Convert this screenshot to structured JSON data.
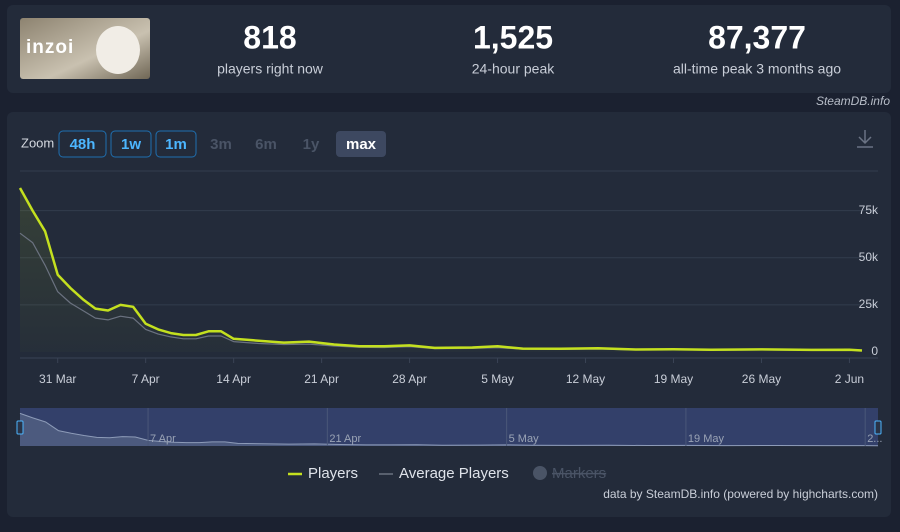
{
  "header": {
    "logo_text": "inzoi",
    "stats": [
      {
        "value": "818",
        "label": "players right now"
      },
      {
        "value": "1,525",
        "label": "24-hour peak"
      },
      {
        "value": "87,377",
        "label": "all-time peak 3 months ago"
      }
    ],
    "source": "SteamDB.info"
  },
  "zoom": {
    "label": "Zoom",
    "buttons": [
      "48h",
      "1w",
      "1m",
      "3m",
      "6m",
      "1y",
      "max"
    ]
  },
  "chart_data": {
    "type": "line",
    "x": [
      "28 Mar",
      "29 Mar",
      "30 Mar",
      "31 Mar",
      "1 Apr",
      "2 Apr",
      "3 Apr",
      "4 Apr",
      "5 Apr",
      "6 Apr",
      "7 Apr",
      "8 Apr",
      "9 Apr",
      "10 Apr",
      "11 Apr",
      "12 Apr",
      "13 Apr",
      "14 Apr",
      "16 Apr",
      "18 Apr",
      "20 Apr",
      "22 Apr",
      "24 Apr",
      "26 Apr",
      "28 Apr",
      "30 Apr",
      "3 May",
      "5 May",
      "7 May",
      "10 May",
      "13 May",
      "16 May",
      "19 May",
      "22 May",
      "26 May",
      "30 May",
      "2 Jun",
      "3 Jun"
    ],
    "series": [
      {
        "name": "Players",
        "color": "#c4e01f",
        "values": [
          87000,
          75000,
          64000,
          41000,
          34000,
          28000,
          23000,
          22000,
          25000,
          24000,
          15000,
          12000,
          10000,
          9000,
          9000,
          11000,
          11000,
          7000,
          6000,
          5000,
          5500,
          4000,
          3000,
          3000,
          3500,
          2200,
          2400,
          3000,
          1800,
          1700,
          2000,
          1300,
          1500,
          1200,
          1400,
          1100,
          1200,
          818
        ]
      },
      {
        "name": "Average Players",
        "color": "#6b7280",
        "values": [
          63000,
          58000,
          46000,
          32000,
          26000,
          22000,
          18000,
          17000,
          19000,
          18000,
          12000,
          9500,
          8000,
          7000,
          7000,
          8500,
          8500,
          5500,
          4500,
          4000,
          4200,
          3200,
          2500,
          2400,
          2800,
          1800,
          1900,
          2300,
          1500,
          1400,
          1600,
          1100,
          1200,
          1000,
          1100,
          900,
          950,
          700
        ]
      }
    ],
    "legend_extra": "Markers",
    "xlim": [
      "28 Mar",
      "3 Jun"
    ],
    "xticks": [
      "31 Mar",
      "7 Apr",
      "14 Apr",
      "21 Apr",
      "28 Apr",
      "5 May",
      "12 May",
      "19 May",
      "26 May",
      "2 Jun"
    ],
    "ylim": [
      0,
      96000
    ],
    "yticks": [
      {
        "value": 0,
        "label": "0"
      },
      {
        "value": 25000,
        "label": "25k"
      },
      {
        "value": 50000,
        "label": "50k"
      },
      {
        "value": 75000,
        "label": "75k"
      }
    ],
    "grid": true,
    "navigator_ticks": [
      "7 Apr",
      "21 Apr",
      "5 May",
      "19 May",
      {
        "value": "2 Jun",
        "label": "2..."
      }
    ],
    "credits": "data by SteamDB.info (powered by highcharts.com)"
  }
}
